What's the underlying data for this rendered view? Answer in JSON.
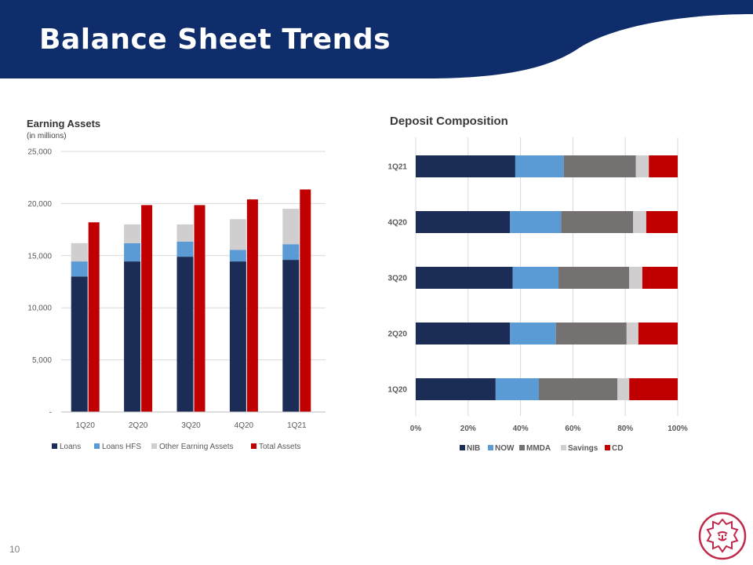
{
  "page": {
    "title": "Balance Sheet Trends",
    "page_number": "10",
    "header_color": "#0f2d6b",
    "logo": "lion-head-logo"
  },
  "chart_data": [
    {
      "type": "bar",
      "title": "Earning Assets",
      "subtitle": "(in millions)",
      "categories": [
        "1Q20",
        "2Q20",
        "3Q20",
        "4Q20",
        "1Q21"
      ],
      "stacked_series": [
        {
          "name": "Loans",
          "color": "#1b2d56",
          "values": [
            13000,
            14450,
            14900,
            14450,
            14600
          ]
        },
        {
          "name": "Loans HFS",
          "color": "#5b9bd5",
          "values": [
            1450,
            1750,
            1450,
            1100,
            1500
          ]
        },
        {
          "name": "Other Earning Assets",
          "color": "#d0cece",
          "values": [
            1750,
            1800,
            1650,
            2950,
            3400
          ]
        }
      ],
      "series": [
        {
          "name": "Total Assets",
          "color": "#c00000",
          "values": [
            18200,
            19850,
            19850,
            20400,
            21350
          ]
        }
      ],
      "ylim": [
        0,
        25000
      ],
      "yticks": [
        0,
        5000,
        10000,
        15000,
        20000,
        25000
      ],
      "ytick_labels": [
        "-",
        "5,000",
        "10,000",
        "15,000",
        "20,000",
        "25,000"
      ],
      "grid": true,
      "legend": "bottom"
    },
    {
      "type": "bar",
      "orientation": "horizontal",
      "stacked": "percent",
      "title": "Deposit Composition",
      "categories": [
        "1Q21",
        "4Q20",
        "3Q20",
        "2Q20",
        "1Q20"
      ],
      "series": [
        {
          "name": "NIB",
          "color": "#1b2d56",
          "values": [
            38,
            36,
            37,
            36,
            30.5
          ]
        },
        {
          "name": "NOW",
          "color": "#5b9bd5",
          "values": [
            18.5,
            19.5,
            17.5,
            17.5,
            16.5
          ]
        },
        {
          "name": "MMDA",
          "color": "#767171",
          "values": [
            27.5,
            27.5,
            27,
            27,
            30
          ]
        },
        {
          "name": "Savings",
          "color": "#d0cece",
          "values": [
            5,
            5,
            5,
            4.5,
            4.5
          ]
        },
        {
          "name": "CD",
          "color": "#c00000",
          "values": [
            11,
            12,
            13.5,
            15,
            18.5
          ]
        }
      ],
      "xlim": [
        0,
        100
      ],
      "xticks": [
        "0%",
        "20%",
        "40%",
        "60%",
        "80%",
        "100%"
      ],
      "grid": true,
      "legend": "bottom"
    }
  ]
}
